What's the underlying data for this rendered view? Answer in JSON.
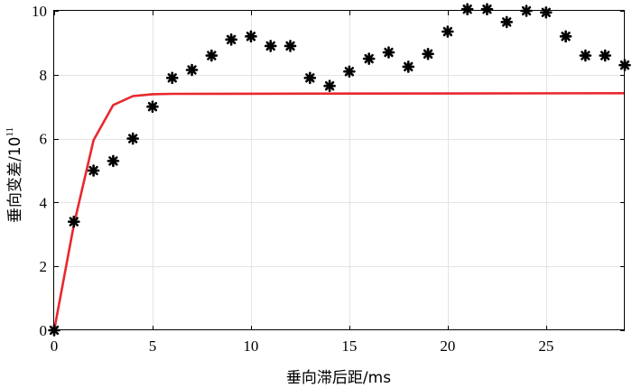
{
  "chart_data": {
    "type": "scatter",
    "xlabel": "垂向滞后距/ms",
    "ylabel": "垂向变差/10",
    "ylabel_exponent": "11",
    "xlim": [
      0,
      29
    ],
    "ylim": [
      0,
      10
    ],
    "xticks": [
      0,
      5,
      10,
      15,
      20,
      25
    ],
    "yticks": [
      0,
      2,
      4,
      6,
      8,
      10
    ],
    "grid": true,
    "series": [
      {
        "kind": "scatter",
        "marker": "asterisk",
        "color": "#000000",
        "x": [
          0,
          1,
          2,
          3,
          4,
          5,
          6,
          7,
          8,
          9,
          10,
          11,
          12,
          13,
          14,
          15,
          16,
          17,
          18,
          19,
          20,
          21,
          22,
          23,
          24,
          25,
          26,
          27,
          28,
          29
        ],
        "y": [
          0,
          3.4,
          5.0,
          5.3,
          6.0,
          7.0,
          7.9,
          8.15,
          8.6,
          9.1,
          9.2,
          8.9,
          8.9,
          7.9,
          7.65,
          8.1,
          8.5,
          8.7,
          8.25,
          8.65,
          9.35,
          10.05,
          10.05,
          9.65,
          10.0,
          9.95,
          9.2,
          8.6,
          8.6,
          8.3
        ]
      },
      {
        "kind": "line",
        "color": "#e8282e",
        "x": [
          0,
          1,
          2,
          3,
          4,
          5,
          6,
          29
        ],
        "y": [
          0,
          3.3,
          5.95,
          7.05,
          7.33,
          7.39,
          7.4,
          7.42
        ]
      }
    ]
  }
}
